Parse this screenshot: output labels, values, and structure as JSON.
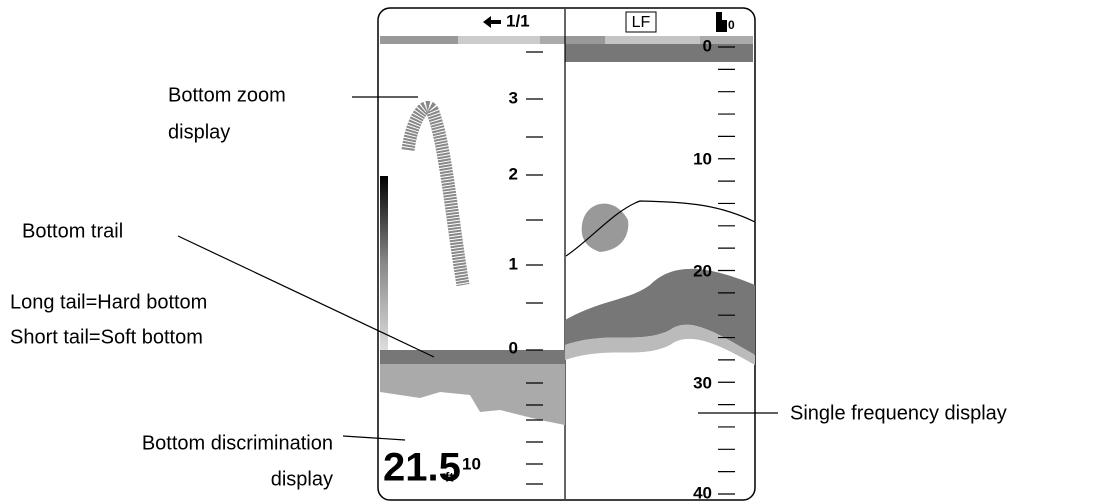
{
  "header": {
    "page": "1/1",
    "mode": "LF",
    "icon_label": "0"
  },
  "left_scale": [
    "3",
    "2",
    "1",
    "0",
    "10"
  ],
  "right_scale": [
    "0",
    "10",
    "20",
    "30",
    "40"
  ],
  "depth": {
    "value": "21.5",
    "unit": "ft"
  },
  "callouts": [
    {
      "lines": [
        "Bottom zoom",
        "display"
      ]
    },
    {
      "lines": [
        "Bottom trail"
      ]
    },
    {
      "lines": [
        "Long tail=Hard bottom",
        "Short tail=Soft bottom"
      ]
    },
    {
      "lines": [
        "Bottom discrimination",
        "display"
      ]
    },
    {
      "lines": [
        "Single frequency display"
      ]
    }
  ]
}
